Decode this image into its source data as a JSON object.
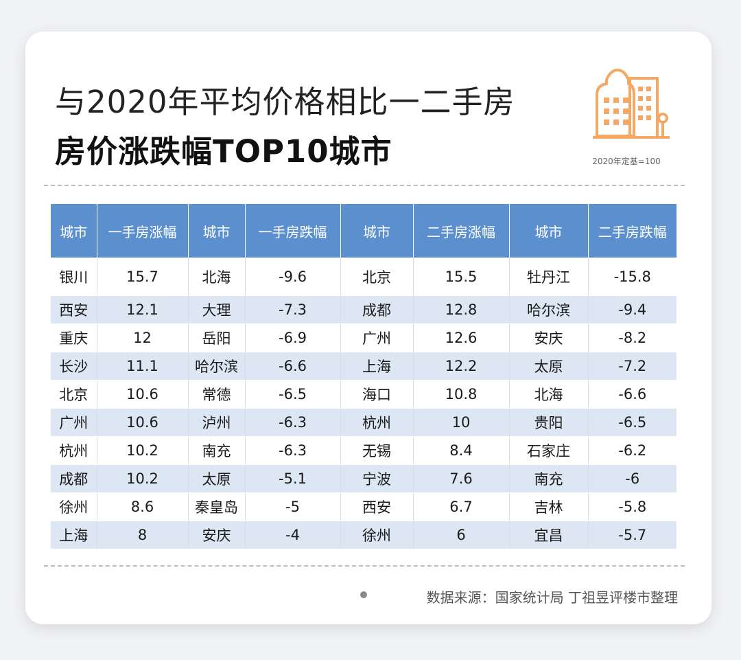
{
  "title": {
    "line1": "与2020年平均价格相比一二手房",
    "line2": "房价涨跌幅TOP10城市"
  },
  "base_note": "2020年定基=100",
  "icon": "building-icon",
  "colors": {
    "header": "#5b8fcd",
    "stripe": "#dde7f4",
    "icon": "#f4a866"
  },
  "table": {
    "headers": [
      "城市",
      "一手房涨幅",
      "城市",
      "一手房跌幅",
      "城市",
      "二手房涨幅",
      "城市",
      "二手房跌幅"
    ],
    "rows": [
      [
        "银川",
        "15.7",
        "北海",
        "-9.6",
        "北京",
        "15.5",
        "牡丹江",
        "-15.8"
      ],
      [
        "西安",
        "12.1",
        "大理",
        "-7.3",
        "成都",
        "12.8",
        "哈尔滨",
        "-9.4"
      ],
      [
        "重庆",
        "12",
        "岳阳",
        "-6.9",
        "广州",
        "12.6",
        "安庆",
        "-8.2"
      ],
      [
        "长沙",
        "11.1",
        "哈尔滨",
        "-6.6",
        "上海",
        "12.2",
        "太原",
        "-7.2"
      ],
      [
        "北京",
        "10.6",
        "常德",
        "-6.5",
        "海口",
        "10.8",
        "北海",
        "-6.6"
      ],
      [
        "广州",
        "10.6",
        "泸州",
        "-6.3",
        "杭州",
        "10",
        "贵阳",
        "-6.5"
      ],
      [
        "杭州",
        "10.2",
        "南充",
        "-6.3",
        "无锡",
        "8.4",
        "石家庄",
        "-6.2"
      ],
      [
        "成都",
        "10.2",
        "太原",
        "-5.1",
        "宁波",
        "7.6",
        "南充",
        "-6"
      ],
      [
        "徐州",
        "8.6",
        "秦皇岛",
        "-5",
        "西安",
        "6.7",
        "吉林",
        "-5.8"
      ],
      [
        "上海",
        "8",
        "安庆",
        "-4",
        "徐州",
        "6",
        "宜昌",
        "-5.7"
      ]
    ]
  },
  "source": "数据来源：国家统计局 丁祖昱评楼市整理",
  "watermark": "丁祖昱评楼市"
}
